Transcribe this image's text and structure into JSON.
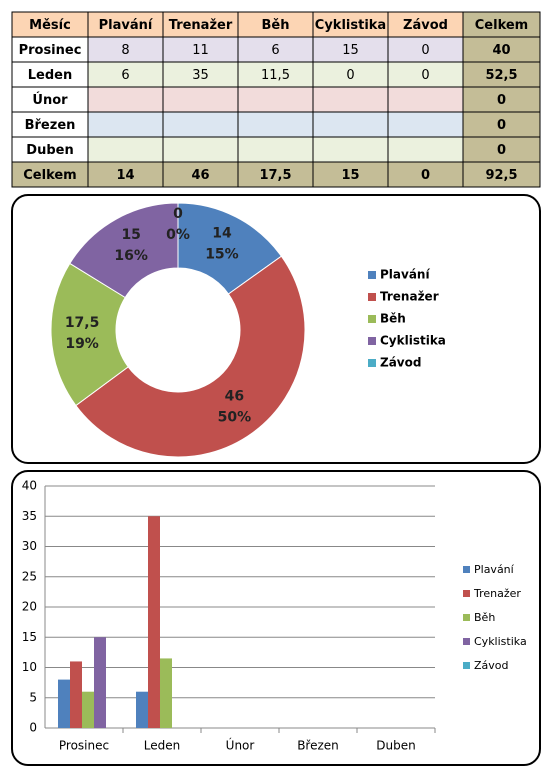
{
  "table": {
    "header": [
      "Měsíc",
      "Plavání",
      "Trenažer",
      "Běh",
      "Cyklistika",
      "Závod",
      "Celkem"
    ],
    "rows": [
      [
        "Prosinec",
        "8",
        "11",
        "6",
        "15",
        "0",
        "40"
      ],
      [
        "Leden",
        "6",
        "35",
        "11,5",
        "0",
        "0",
        "52,5"
      ],
      [
        "Únor",
        null,
        null,
        null,
        null,
        null,
        "0"
      ],
      [
        "Březen",
        null,
        null,
        null,
        null,
        null,
        "0"
      ],
      [
        "Duben",
        null,
        null,
        null,
        null,
        null,
        "0"
      ],
      [
        "Celkem",
        "14",
        "46",
        "17,5",
        "15",
        "0",
        "92,5"
      ]
    ]
  },
  "chart_data": [
    {
      "type": "doughnut",
      "categories": [
        "Plavání",
        "Trenažer",
        "Běh",
        "Cyklistika",
        "Závod"
      ],
      "values": [
        14,
        46,
        17.5,
        15,
        0
      ],
      "value_labels": [
        "14",
        "46",
        "17,5",
        "15",
        "0"
      ],
      "percent_labels": [
        "15%",
        "50%",
        "19%",
        "16%",
        "0%"
      ],
      "colors": [
        "#4f81bd",
        "#c0504d",
        "#9bbb59",
        "#8064a2",
        "#4bacc6"
      ],
      "legend": "right"
    },
    {
      "type": "bar",
      "categories": [
        "Prosinec",
        "Leden",
        "Únor",
        "Březen",
        "Duben"
      ],
      "series": [
        {
          "name": "Plavání",
          "color": "#4f81bd",
          "values": [
            8,
            6,
            null,
            null,
            null
          ]
        },
        {
          "name": "Trenažer",
          "color": "#c0504d",
          "values": [
            11,
            35,
            null,
            null,
            null
          ]
        },
        {
          "name": "Běh",
          "color": "#9bbb59",
          "values": [
            6,
            11.5,
            null,
            null,
            null
          ]
        },
        {
          "name": "Cyklistika",
          "color": "#8064a2",
          "values": [
            15,
            0,
            null,
            null,
            null
          ]
        },
        {
          "name": "Závod",
          "color": "#4bacc6",
          "values": [
            0,
            0,
            null,
            null,
            null
          ]
        }
      ],
      "ylim": [
        0,
        40
      ],
      "yticks": [
        0,
        5,
        10,
        15,
        20,
        25,
        30,
        35,
        40
      ],
      "grid": true,
      "legend": "right"
    }
  ]
}
